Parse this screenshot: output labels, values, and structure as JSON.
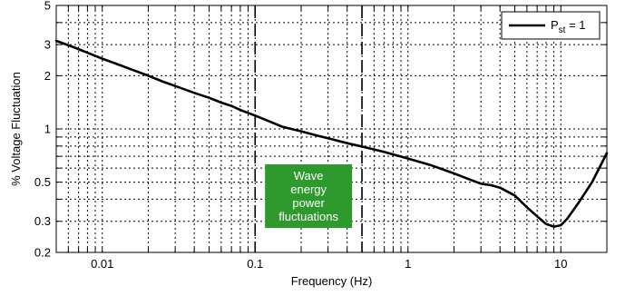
{
  "chart_data": {
    "type": "line",
    "xlabel": "Frequency (Hz)",
    "ylabel": "% Voltage Fluctuation",
    "xscale": "log",
    "yscale": "log",
    "xlim": [
      0.005,
      20
    ],
    "ylim": [
      0.2,
      5
    ],
    "x_ticks": [
      0.01,
      0.1,
      1,
      10
    ],
    "x_tick_labels": [
      "0.01",
      "0.1",
      "1",
      "10"
    ],
    "y_ticks": [
      0.2,
      0.3,
      0.5,
      1,
      2,
      3,
      5
    ],
    "y_tick_labels": [
      "0.2",
      "0.3",
      "0.5",
      "1",
      "2",
      "3",
      "5"
    ],
    "grid": true,
    "legend": {
      "placement": "top-right",
      "base": "P",
      "subscript": "st",
      "suffix": " = 1"
    },
    "series": [
      {
        "name": "P_st = 1",
        "color": "#000000",
        "x": [
          0.005,
          0.0065,
          0.008,
          0.01,
          0.013,
          0.016,
          0.02,
          0.025,
          0.03,
          0.04,
          0.05,
          0.06,
          0.07,
          0.08,
          0.1,
          0.125,
          0.15,
          0.2,
          0.25,
          0.3,
          0.4,
          0.5,
          0.6,
          0.7,
          1,
          1.4,
          2,
          2.5,
          3,
          3.5,
          4,
          5,
          6,
          7,
          8,
          9,
          10,
          11,
          13,
          16,
          20
        ],
        "y": [
          3.15,
          2.9,
          2.7,
          2.5,
          2.3,
          2.15,
          2.0,
          1.85,
          1.75,
          1.6,
          1.5,
          1.41,
          1.35,
          1.28,
          1.19,
          1.1,
          1.03,
          0.97,
          0.92,
          0.885,
          0.83,
          0.795,
          0.765,
          0.74,
          0.68,
          0.625,
          0.56,
          0.52,
          0.49,
          0.48,
          0.465,
          0.42,
          0.36,
          0.32,
          0.29,
          0.28,
          0.285,
          0.31,
          0.38,
          0.5,
          0.73
        ]
      }
    ],
    "vertical_markers": [
      0.1,
      0.5
    ],
    "annotation": {
      "lines": [
        "Wave",
        "energy",
        "power",
        "fluctuations"
      ],
      "color": "#2e9a2e",
      "x_range": [
        0.1,
        0.5
      ]
    }
  }
}
